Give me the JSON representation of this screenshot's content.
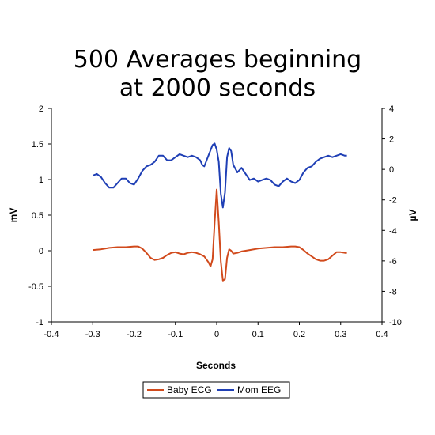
{
  "chart_data": {
    "type": "line",
    "title_lines": [
      "500 Averages beginning",
      "at 2000 seconds"
    ],
    "xlabel": "Seconds",
    "ylabel_left": "mV",
    "ylabel_right": "µV",
    "xlim": [
      -0.4,
      0.4
    ],
    "ylim_left": [
      -1,
      2
    ],
    "ylim_right": [
      -10,
      4
    ],
    "x_ticks": [
      "-0.4",
      "-0.3",
      "-0.2",
      "-0.1",
      "0",
      "0.1",
      "0.2",
      "0.3",
      "0.4"
    ],
    "y_ticks_left": [
      "-1",
      "-0.5",
      "0",
      "0.5",
      "1",
      "1.5",
      "2"
    ],
    "y_ticks_right": [
      "-10",
      "-8",
      "-6",
      "-4",
      "-2",
      "0",
      "2",
      "4"
    ],
    "grid": false,
    "legend_position": "bottom-center",
    "series": [
      {
        "name": "Baby ECG",
        "axis": "left",
        "color": "#d14a1c",
        "points": [
          [
            -0.3,
            0.01
          ],
          [
            -0.28,
            0.02
          ],
          [
            -0.26,
            0.04
          ],
          [
            -0.24,
            0.05
          ],
          [
            -0.22,
            0.05
          ],
          [
            -0.2,
            0.06
          ],
          [
            -0.19,
            0.06
          ],
          [
            -0.18,
            0.03
          ],
          [
            -0.17,
            -0.03
          ],
          [
            -0.16,
            -0.1
          ],
          [
            -0.15,
            -0.13
          ],
          [
            -0.14,
            -0.12
          ],
          [
            -0.13,
            -0.1
          ],
          [
            -0.12,
            -0.06
          ],
          [
            -0.11,
            -0.03
          ],
          [
            -0.1,
            -0.02
          ],
          [
            -0.09,
            -0.04
          ],
          [
            -0.08,
            -0.05
          ],
          [
            -0.07,
            -0.03
          ],
          [
            -0.06,
            -0.02
          ],
          [
            -0.05,
            -0.03
          ],
          [
            -0.04,
            -0.05
          ],
          [
            -0.03,
            -0.08
          ],
          [
            -0.02,
            -0.16
          ],
          [
            -0.015,
            -0.22
          ],
          [
            -0.01,
            -0.12
          ],
          [
            -0.005,
            0.4
          ],
          [
            0.0,
            0.86
          ],
          [
            0.005,
            0.4
          ],
          [
            0.01,
            -0.15
          ],
          [
            0.015,
            -0.42
          ],
          [
            0.02,
            -0.4
          ],
          [
            0.025,
            -0.1
          ],
          [
            0.03,
            0.02
          ],
          [
            0.035,
            0.0
          ],
          [
            0.04,
            -0.04
          ],
          [
            0.05,
            -0.03
          ],
          [
            0.06,
            -0.01
          ],
          [
            0.08,
            0.01
          ],
          [
            0.1,
            0.03
          ],
          [
            0.12,
            0.04
          ],
          [
            0.14,
            0.05
          ],
          [
            0.16,
            0.05
          ],
          [
            0.18,
            0.06
          ],
          [
            0.19,
            0.06
          ],
          [
            0.2,
            0.05
          ],
          [
            0.21,
            0.01
          ],
          [
            0.22,
            -0.04
          ],
          [
            0.23,
            -0.08
          ],
          [
            0.24,
            -0.12
          ],
          [
            0.25,
            -0.14
          ],
          [
            0.26,
            -0.14
          ],
          [
            0.27,
            -0.12
          ],
          [
            0.28,
            -0.07
          ],
          [
            0.29,
            -0.02
          ],
          [
            0.3,
            -0.02
          ],
          [
            0.31,
            -0.03
          ],
          [
            0.315,
            -0.03
          ]
        ]
      },
      {
        "name": "Mom EEG",
        "axis": "right",
        "color": "#1f3fb5",
        "points": [
          [
            -0.3,
            -0.4
          ],
          [
            -0.29,
            -0.3
          ],
          [
            -0.28,
            -0.5
          ],
          [
            -0.27,
            -0.9
          ],
          [
            -0.26,
            -1.2
          ],
          [
            -0.25,
            -1.2
          ],
          [
            -0.24,
            -0.9
          ],
          [
            -0.23,
            -0.6
          ],
          [
            -0.22,
            -0.6
          ],
          [
            -0.21,
            -0.9
          ],
          [
            -0.2,
            -1.0
          ],
          [
            -0.19,
            -0.6
          ],
          [
            -0.18,
            -0.1
          ],
          [
            -0.17,
            0.2
          ],
          [
            -0.16,
            0.3
          ],
          [
            -0.15,
            0.5
          ],
          [
            -0.14,
            0.9
          ],
          [
            -0.13,
            0.9
          ],
          [
            -0.12,
            0.6
          ],
          [
            -0.11,
            0.6
          ],
          [
            -0.1,
            0.8
          ],
          [
            -0.09,
            1.0
          ],
          [
            -0.08,
            0.9
          ],
          [
            -0.07,
            0.8
          ],
          [
            -0.06,
            0.9
          ],
          [
            -0.05,
            0.8
          ],
          [
            -0.04,
            0.6
          ],
          [
            -0.035,
            0.3
          ],
          [
            -0.03,
            0.2
          ],
          [
            -0.02,
            0.9
          ],
          [
            -0.01,
            1.6
          ],
          [
            -0.005,
            1.7
          ],
          [
            0.0,
            1.3
          ],
          [
            0.005,
            0.5
          ],
          [
            0.01,
            -1.6
          ],
          [
            0.015,
            -2.5
          ],
          [
            0.02,
            -1.5
          ],
          [
            0.025,
            0.8
          ],
          [
            0.03,
            1.4
          ],
          [
            0.035,
            1.2
          ],
          [
            0.04,
            0.3
          ],
          [
            0.05,
            -0.2
          ],
          [
            0.06,
            0.1
          ],
          [
            0.07,
            -0.3
          ],
          [
            0.08,
            -0.7
          ],
          [
            0.09,
            -0.6
          ],
          [
            0.1,
            -0.8
          ],
          [
            0.11,
            -0.7
          ],
          [
            0.12,
            -0.6
          ],
          [
            0.13,
            -0.7
          ],
          [
            0.14,
            -1.0
          ],
          [
            0.15,
            -1.1
          ],
          [
            0.16,
            -0.8
          ],
          [
            0.17,
            -0.6
          ],
          [
            0.18,
            -0.8
          ],
          [
            0.19,
            -0.9
          ],
          [
            0.2,
            -0.7
          ],
          [
            0.21,
            -0.2
          ],
          [
            0.22,
            0.1
          ],
          [
            0.23,
            0.2
          ],
          [
            0.24,
            0.5
          ],
          [
            0.25,
            0.7
          ],
          [
            0.26,
            0.8
          ],
          [
            0.27,
            0.9
          ],
          [
            0.28,
            0.8
          ],
          [
            0.29,
            0.9
          ],
          [
            0.3,
            1.0
          ],
          [
            0.31,
            0.9
          ],
          [
            0.315,
            0.9
          ]
        ]
      }
    ]
  }
}
